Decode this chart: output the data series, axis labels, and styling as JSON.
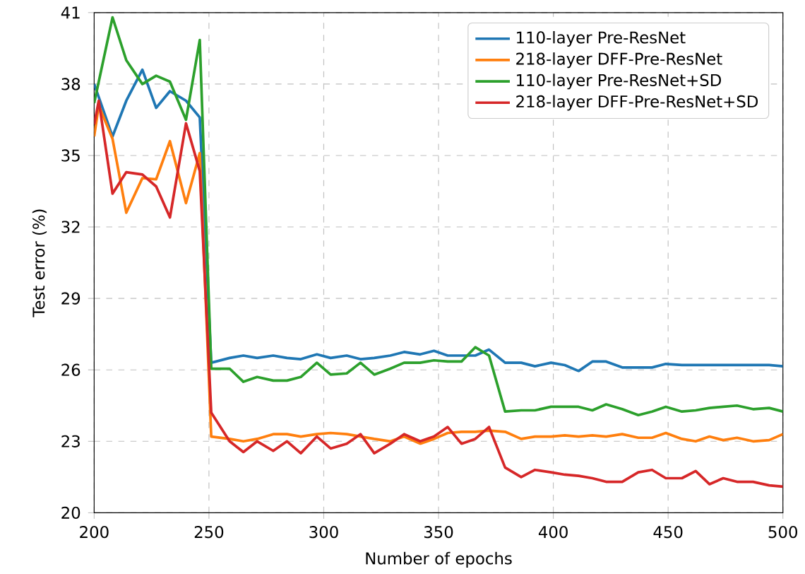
{
  "chart_data": {
    "type": "line",
    "xlabel": "Number of epochs",
    "ylabel": "Test error (%)",
    "xlim": [
      200,
      500
    ],
    "ylim": [
      20,
      41
    ],
    "xticks": [
      200,
      250,
      300,
      350,
      400,
      450,
      500
    ],
    "yticks": [
      20,
      23,
      26,
      29,
      32,
      35,
      38,
      41
    ],
    "grid": true,
    "legend": "top right",
    "line_style": "solid",
    "series": [
      {
        "name": "110-layer Pre-ResNet",
        "color": "#1f77b4",
        "x": [
          200,
          208,
          214,
          221,
          227,
          233,
          240,
          246,
          251,
          259,
          265,
          271,
          278,
          284,
          290,
          297,
          303,
          310,
          316,
          322,
          329,
          335,
          342,
          348,
          354,
          360,
          366,
          372,
          379,
          386,
          392,
          399,
          405,
          411,
          417,
          423,
          430,
          437,
          443,
          449,
          456,
          462,
          468,
          474,
          480,
          487,
          494,
          500
        ],
        "values": [
          38.0,
          35.8,
          37.3,
          38.6,
          37.0,
          37.7,
          37.3,
          36.6,
          26.3,
          26.5,
          26.6,
          26.5,
          26.6,
          26.5,
          26.45,
          26.65,
          26.5,
          26.6,
          26.45,
          26.5,
          26.6,
          26.75,
          26.65,
          26.8,
          26.6,
          26.6,
          26.6,
          26.85,
          26.3,
          26.3,
          26.15,
          26.3,
          26.2,
          25.95,
          26.35,
          26.35,
          26.1,
          26.1,
          26.1,
          26.25,
          26.2,
          26.2,
          26.2,
          26.2,
          26.2,
          26.2,
          26.2,
          26.15
        ]
      },
      {
        "name": "218-layer DFF-Pre-ResNet",
        "color": "#ff7f0e",
        "x": [
          200,
          202,
          208,
          214,
          221,
          227,
          233,
          240,
          246,
          251,
          259,
          265,
          271,
          278,
          284,
          290,
          297,
          303,
          310,
          316,
          322,
          329,
          335,
          342,
          348,
          354,
          360,
          366,
          372,
          379,
          386,
          392,
          399,
          405,
          411,
          417,
          423,
          430,
          437,
          443,
          449,
          456,
          462,
          468,
          474,
          480,
          487,
          494,
          500
        ],
        "values": [
          35.8,
          37.1,
          35.7,
          32.6,
          34.05,
          34.0,
          35.6,
          33.0,
          35.1,
          23.2,
          23.1,
          23.0,
          23.1,
          23.3,
          23.3,
          23.2,
          23.3,
          23.35,
          23.3,
          23.2,
          23.1,
          23.0,
          23.2,
          22.9,
          23.1,
          23.35,
          23.4,
          23.4,
          23.45,
          23.4,
          23.1,
          23.2,
          23.2,
          23.25,
          23.2,
          23.25,
          23.2,
          23.3,
          23.15,
          23.15,
          23.35,
          23.1,
          23.0,
          23.2,
          23.05,
          23.15,
          23.0,
          23.05,
          23.3
        ]
      },
      {
        "name": "110-layer Pre-ResNet+SD",
        "color": "#2ca02c",
        "x": [
          200,
          208,
          214,
          221,
          227,
          233,
          240,
          246,
          251,
          259,
          265,
          271,
          278,
          284,
          290,
          297,
          303,
          310,
          316,
          322,
          329,
          335,
          342,
          348,
          354,
          360,
          366,
          372,
          379,
          386,
          392,
          399,
          405,
          411,
          417,
          423,
          430,
          437,
          443,
          449,
          456,
          462,
          468,
          474,
          480,
          487,
          494,
          500
        ],
        "values": [
          37.2,
          40.8,
          39.0,
          38.0,
          38.35,
          38.1,
          36.5,
          39.85,
          26.05,
          26.05,
          25.5,
          25.7,
          25.55,
          25.55,
          25.7,
          26.3,
          25.8,
          25.85,
          26.3,
          25.8,
          26.05,
          26.3,
          26.3,
          26.4,
          26.35,
          26.35,
          26.95,
          26.6,
          24.25,
          24.3,
          24.3,
          24.45,
          24.45,
          24.45,
          24.3,
          24.55,
          24.35,
          24.1,
          24.25,
          24.45,
          24.25,
          24.3,
          24.4,
          24.45,
          24.5,
          24.35,
          24.4,
          24.25
        ]
      },
      {
        "name": "218-layer DFF-Pre-ResNet+SD",
        "color": "#d62728",
        "x": [
          200,
          202,
          208,
          214,
          221,
          227,
          233,
          240,
          246,
          251,
          259,
          265,
          271,
          278,
          284,
          290,
          297,
          303,
          310,
          316,
          322,
          329,
          335,
          342,
          348,
          354,
          360,
          366,
          372,
          379,
          386,
          392,
          399,
          405,
          411,
          417,
          423,
          430,
          437,
          443,
          449,
          456,
          462,
          468,
          474,
          480,
          487,
          494,
          500
        ],
        "values": [
          36.3,
          37.3,
          33.4,
          34.3,
          34.2,
          33.7,
          32.4,
          36.35,
          34.35,
          24.2,
          23.0,
          22.55,
          23.0,
          22.6,
          23.0,
          22.5,
          23.2,
          22.7,
          22.9,
          23.3,
          22.5,
          22.9,
          23.3,
          23.0,
          23.2,
          23.6,
          22.9,
          23.1,
          23.6,
          21.9,
          21.5,
          21.8,
          21.7,
          21.6,
          21.55,
          21.45,
          21.3,
          21.3,
          21.7,
          21.8,
          21.45,
          21.45,
          21.75,
          21.2,
          21.45,
          21.3,
          21.3,
          21.15,
          21.1
        ]
      }
    ]
  }
}
